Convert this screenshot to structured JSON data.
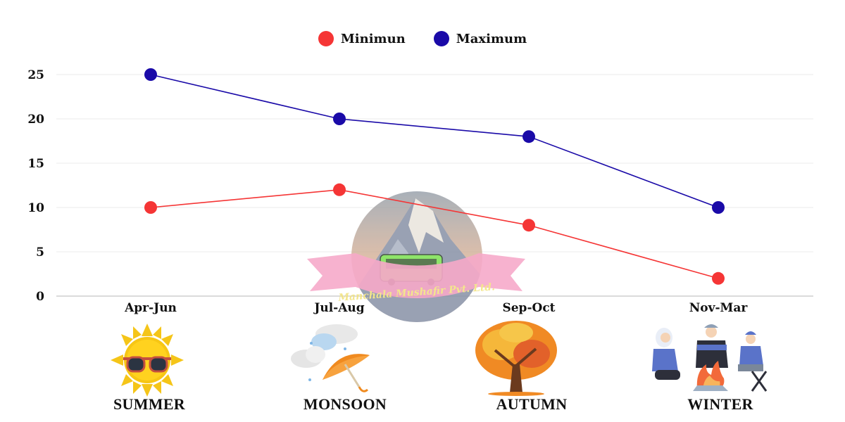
{
  "legend": {
    "items": [
      {
        "label": "Minimun",
        "color": "#f53535"
      },
      {
        "label": "Maximum",
        "color": "#1a0aa8"
      }
    ]
  },
  "watermark": {
    "text": "Manchala Mushafir Pvt. Ltd."
  },
  "seasons": [
    {
      "period": "Apr-Jun",
      "name": "SUMMER",
      "icon": "sun-with-sunglasses-icon"
    },
    {
      "period": "Jul-Aug",
      "name": "MONSOON",
      "icon": "rain-cloud-umbrella-icon"
    },
    {
      "period": "Sep-Oct",
      "name": "AUTUMN",
      "icon": "autumn-tree-icon"
    },
    {
      "period": "Nov-Mar",
      "name": "WINTER",
      "icon": "people-around-campfire-icon"
    }
  ],
  "chart_data": {
    "type": "line",
    "title": "",
    "xlabel": "",
    "ylabel": "",
    "categories": [
      "Apr-Jun",
      "Jul-Aug",
      "Sep-Oct",
      "Nov-Mar"
    ],
    "series": [
      {
        "name": "Minimun",
        "color": "#f53535",
        "values": [
          10,
          12,
          8,
          2
        ]
      },
      {
        "name": "Maximum",
        "color": "#1a0aa8",
        "values": [
          25,
          20,
          18,
          10
        ]
      }
    ],
    "yticks": [
      0,
      5,
      10,
      15,
      20,
      25
    ],
    "ylim": [
      0,
      25
    ],
    "grid": true,
    "legend_position": "top-center"
  }
}
